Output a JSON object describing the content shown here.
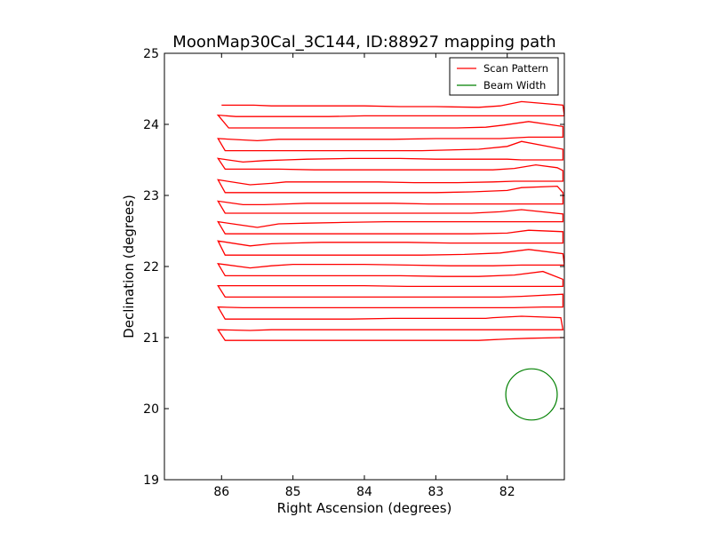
{
  "chart_data": {
    "type": "line",
    "title": "MoonMap30Cal_3C144, ID:88927 mapping path",
    "xlabel": "Right Ascension (degrees)",
    "ylabel": "Declination (degrees)",
    "xlim": [
      86.8,
      81.2
    ],
    "ylim": [
      19,
      25
    ],
    "x_ticks": [
      86,
      85,
      84,
      83,
      82
    ],
    "y_ticks": [
      19,
      20,
      21,
      22,
      23,
      24,
      25
    ],
    "x_tick_labels": [
      "86",
      "85",
      "84",
      "83",
      "82"
    ],
    "y_tick_labels": [
      "19",
      "20",
      "21",
      "22",
      "23",
      "24",
      "25"
    ],
    "grid": false,
    "legend": {
      "position": "top-right",
      "entries": [
        "Scan Pattern",
        "Beam Width"
      ]
    },
    "series": [
      {
        "name": "Scan Pattern",
        "color": "#ff0000",
        "x": [
          86.0,
          85.9,
          85.55,
          85.3,
          85.2,
          84.7,
          84.4,
          84.0,
          83.5,
          83.0,
          82.4,
          82.1,
          81.8,
          81.22,
          81.2,
          81.3,
          81.7,
          82.0,
          82.1,
          82.45,
          82.7,
          83.3,
          84.0,
          84.5,
          85.1,
          85.3,
          85.5,
          85.8,
          86.05,
          85.9,
          85.6,
          85.1,
          84.8,
          84.3,
          83.5,
          82.7,
          82.3,
          82.05,
          81.7,
          81.22,
          81.22,
          81.5,
          81.7,
          82.1,
          82.6,
          83.0,
          83.6,
          84.2,
          84.9,
          85.2,
          85.5,
          86.05,
          85.95,
          85.8,
          85.6,
          85.3,
          85.1,
          84.8,
          84.3,
          83.8,
          83.2,
          82.4,
          82.0,
          81.8,
          81.22,
          81.22,
          81.5,
          81.8,
          82.0,
          82.4,
          83.0,
          83.5,
          84.2,
          84.8,
          85.1,
          85.4,
          85.7,
          86.05,
          85.95,
          85.5,
          85.2,
          84.7,
          84.2,
          83.5,
          82.8,
          82.2,
          81.9,
          81.6,
          81.3,
          81.22,
          81.22,
          81.5,
          81.9,
          82.2,
          82.7,
          83.3,
          83.8,
          84.3,
          84.8,
          85.1,
          85.3,
          85.6,
          86.05,
          85.95,
          85.6,
          85.3,
          85.0,
          84.5,
          84.0,
          83.5,
          83.0,
          82.5,
          82.0,
          81.8,
          81.3,
          81.22,
          81.22,
          81.5,
          81.8,
          82.1,
          82.6,
          83.1,
          83.6,
          84.2,
          84.8,
          85.1,
          85.4,
          85.7,
          86.05,
          85.95,
          85.7,
          85.5,
          85.2,
          84.8,
          84.2,
          83.6,
          83.0,
          82.5,
          82.1,
          81.8,
          81.22,
          81.22,
          81.6,
          81.9,
          82.2,
          82.7,
          83.2,
          83.7,
          84.3,
          84.8,
          85.2,
          85.5,
          86.05,
          85.95,
          85.7,
          85.3,
          84.9,
          84.3,
          83.6,
          83.0,
          82.5,
          82.0,
          81.7,
          81.22,
          81.22,
          81.5,
          81.8,
          82.2,
          82.8,
          83.4,
          84.0,
          84.6,
          85.0,
          85.3,
          85.6,
          86.05,
          85.95,
          85.6,
          85.3,
          85.0,
          84.5,
          83.9,
          83.2,
          82.6,
          82.1,
          81.7,
          81.22,
          81.2,
          81.4,
          81.8,
          82.2,
          82.8,
          83.4,
          84.0,
          84.6,
          85.0,
          85.3,
          85.6,
          86.05,
          85.95,
          85.6,
          85.2,
          84.7,
          84.1,
          83.5,
          82.9,
          82.4,
          81.9,
          81.5,
          81.22,
          81.22,
          81.5,
          81.8,
          82.2,
          82.8,
          83.4,
          84.0,
          84.6,
          85.0,
          85.4,
          85.7,
          86.05,
          85.95,
          85.6,
          85.2,
          84.8,
          84.1,
          83.4,
          82.7,
          82.1,
          81.8,
          81.22,
          81.22,
          81.5,
          81.9,
          82.2,
          82.8,
          83.4,
          84.0,
          84.6,
          85.1,
          85.4,
          85.7,
          86.05,
          85.95,
          85.6,
          85.2,
          84.8,
          84.2,
          83.6,
          82.9,
          82.3,
          82.2,
          81.8,
          81.25,
          81.22,
          81.5,
          81.8,
          82.2,
          82.8,
          83.4,
          84.0,
          84.6,
          85.0,
          85.3,
          85.6,
          86.05,
          85.95,
          85.7,
          85.3,
          85.0,
          84.5,
          83.8,
          83.0,
          82.4,
          82.0,
          81.7,
          81.22
        ],
        "y": [
          24.27,
          24.27,
          24.27,
          24.26,
          24.26,
          24.26,
          24.26,
          24.26,
          24.25,
          24.25,
          24.24,
          24.26,
          24.32,
          24.27,
          24.12,
          24.12,
          24.12,
          24.12,
          24.12,
          24.12,
          24.12,
          24.12,
          24.12,
          24.11,
          24.11,
          24.11,
          24.11,
          24.11,
          24.13,
          23.95,
          23.95,
          23.95,
          23.95,
          23.95,
          23.95,
          23.95,
          23.96,
          23.99,
          24.04,
          23.97,
          23.82,
          23.82,
          23.82,
          23.8,
          23.8,
          23.8,
          23.79,
          23.79,
          23.79,
          23.79,
          23.77,
          23.8,
          23.63,
          23.63,
          23.63,
          23.63,
          23.63,
          23.63,
          23.63,
          23.63,
          23.63,
          23.65,
          23.69,
          23.76,
          23.65,
          23.5,
          23.5,
          23.5,
          23.51,
          23.51,
          23.51,
          23.52,
          23.52,
          23.51,
          23.5,
          23.49,
          23.47,
          23.52,
          23.37,
          23.37,
          23.37,
          23.36,
          23.36,
          23.36,
          23.36,
          23.36,
          23.38,
          23.43,
          23.39,
          23.35,
          23.2,
          23.2,
          23.2,
          23.19,
          23.18,
          23.18,
          23.19,
          23.19,
          23.19,
          23.19,
          23.17,
          23.15,
          23.22,
          23.04,
          23.04,
          23.04,
          23.04,
          23.04,
          23.04,
          23.04,
          23.04,
          23.05,
          23.07,
          23.11,
          23.13,
          23.04,
          22.88,
          22.88,
          22.88,
          22.88,
          22.88,
          22.88,
          22.89,
          22.89,
          22.89,
          22.88,
          22.87,
          22.87,
          22.92,
          22.75,
          22.75,
          22.75,
          22.75,
          22.75,
          22.75,
          22.75,
          22.75,
          22.75,
          22.77,
          22.8,
          22.74,
          22.63,
          22.63,
          22.63,
          22.63,
          22.63,
          22.63,
          22.63,
          22.62,
          22.61,
          22.6,
          22.55,
          22.63,
          22.46,
          22.46,
          22.46,
          22.46,
          22.46,
          22.46,
          22.46,
          22.46,
          22.47,
          22.51,
          22.49,
          22.33,
          22.33,
          22.33,
          22.33,
          22.33,
          22.34,
          22.34,
          22.34,
          22.33,
          22.32,
          22.29,
          22.36,
          22.16,
          22.16,
          22.16,
          22.16,
          22.16,
          22.16,
          22.16,
          22.17,
          22.19,
          22.24,
          22.18,
          22.02,
          22.02,
          22.02,
          22.01,
          22.01,
          22.02,
          22.03,
          22.03,
          22.03,
          22.01,
          21.98,
          22.04,
          21.87,
          21.87,
          21.87,
          21.87,
          21.87,
          21.87,
          21.86,
          21.86,
          21.88,
          21.93,
          21.82,
          21.72,
          21.72,
          21.72,
          21.72,
          21.72,
          21.72,
          21.73,
          21.73,
          21.73,
          21.73,
          21.73,
          21.73,
          21.57,
          21.57,
          21.57,
          21.57,
          21.57,
          21.57,
          21.57,
          21.57,
          21.58,
          21.61,
          21.43,
          21.43,
          21.42,
          21.42,
          21.42,
          21.42,
          21.42,
          21.42,
          21.42,
          21.42,
          21.42,
          21.43,
          21.26,
          21.26,
          21.26,
          21.26,
          21.26,
          21.27,
          21.27,
          21.27,
          21.28,
          21.3,
          21.28,
          21.11,
          21.11,
          21.11,
          21.11,
          21.11,
          21.11,
          21.11,
          21.11,
          21.11,
          21.11,
          21.1,
          21.11,
          20.96,
          20.96,
          20.96,
          20.96,
          20.96,
          20.96,
          20.96,
          20.96,
          20.98,
          20.99,
          21.0
        ]
      }
    ],
    "beam": {
      "name": "Beam Width",
      "color": "#008000",
      "center_ra": 81.66,
      "center_dec": 20.2,
      "radius_deg": 0.36
    }
  }
}
